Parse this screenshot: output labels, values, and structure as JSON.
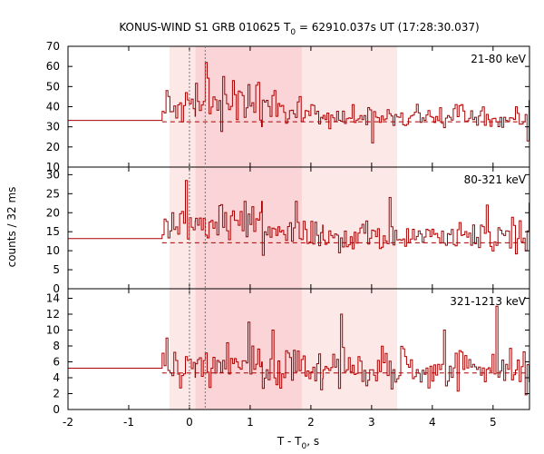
{
  "title": {
    "prefix": "KONUS-WIND S1 GRB 010625 T",
    "subscript": "0",
    "suffix": " = 62910.037s UT (17:28:30.037)"
  },
  "ylabel": "counts / 32 ms",
  "xlabel": {
    "prefix": "T - T",
    "subscript": "0",
    "suffix": ", s"
  },
  "colors": {
    "line": "#aa0000",
    "shade_light": "#fde8e8",
    "shade_dark": "#fad4d6",
    "marker": "#777777",
    "frame": "#000000"
  },
  "chart_data": {
    "type": "line",
    "subtype": "step light curve, 3 stacked panels sharing x axis",
    "xlim": [
      -2,
      5.6
    ],
    "xticks": [
      -2,
      -1,
      0,
      1,
      2,
      3,
      4,
      5
    ],
    "shaded_intervals": [
      {
        "from": -0.33,
        "to": 3.42,
        "shade": "light"
      },
      {
        "from": 0.1,
        "to": 1.85,
        "shade": "dark"
      }
    ],
    "markers": [
      0,
      0.26
    ],
    "bin_width": 0.032,
    "panels": [
      {
        "label": "21-80 keV",
        "ylim": [
          10,
          70
        ],
        "yticks": [
          10,
          20,
          30,
          40,
          50,
          60,
          70
        ],
        "pre_level": 33.2,
        "pre_end": -0.45,
        "background": 32.5,
        "segments": [
          {
            "from": -0.45,
            "to": 0.1,
            "mean": 39,
            "amp": 6,
            "seed": 11,
            "peaks": [
              [
                -0.38,
                48
              ],
              [
                -0.05,
                47
              ]
            ]
          },
          {
            "from": 0.1,
            "to": 1.2,
            "mean": 41,
            "amp": 10,
            "seed": 23,
            "peaks": [
              [
                0.26,
                62
              ],
              [
                0.7,
                53
              ],
              [
                0.55,
                55
              ],
              [
                0.95,
                51
              ]
            ]
          },
          {
            "from": 1.2,
            "to": 2.2,
            "mean": 37,
            "amp": 7,
            "seed": 37,
            "peaks": [
              [
                1.4,
                48
              ],
              [
                1.8,
                45
              ]
            ]
          },
          {
            "from": 2.2,
            "to": 5.6,
            "mean": 34.5,
            "amp": 5.5,
            "seed": 41,
            "peaks": [
              [
                3.0,
                22
              ],
              [
                5.55,
                23
              ],
              [
                5.6,
                43
              ]
            ]
          }
        ]
      },
      {
        "label": "80-321 keV",
        "ylim": [
          0,
          32
        ],
        "yticks": [
          0,
          5,
          10,
          15,
          20,
          25,
          30
        ],
        "pre_level": 13.2,
        "pre_end": -0.45,
        "background": 12.1,
        "segments": [
          {
            "from": -0.45,
            "to": 0.1,
            "mean": 17,
            "amp": 4,
            "seed": 53,
            "peaks": [
              [
                -0.3,
                20
              ],
              [
                -0.05,
                28.5
              ]
            ]
          },
          {
            "from": 0.1,
            "to": 1.2,
            "mean": 17.5,
            "amp": 4.5,
            "seed": 67,
            "peaks": [
              [
                0.9,
                23
              ],
              [
                1.2,
                23
              ]
            ]
          },
          {
            "from": 1.2,
            "to": 2.2,
            "mean": 15,
            "amp": 4,
            "seed": 71,
            "peaks": [
              [
                1.75,
                23
              ]
            ]
          },
          {
            "from": 2.2,
            "to": 5.6,
            "mean": 13.8,
            "amp": 3.6,
            "seed": 83,
            "peaks": [
              [
                3.3,
                24
              ],
              [
                4.9,
                22
              ],
              [
                5.58,
                22.5
              ]
            ]
          }
        ]
      },
      {
        "label": "321-1213 keV",
        "ylim": [
          0,
          15.2
        ],
        "yticks": [
          0,
          2,
          4,
          6,
          8,
          10,
          12,
          14
        ],
        "pre_level": 5.2,
        "pre_end": -0.45,
        "background": 4.6,
        "segments": [
          {
            "from": -0.45,
            "to": 0.1,
            "mean": 5.5,
            "amp": 2.4,
            "seed": 97,
            "peaks": [
              [
                -0.38,
                9
              ]
            ]
          },
          {
            "from": 0.1,
            "to": 1.2,
            "mean": 5.8,
            "amp": 2.8,
            "seed": 101,
            "peaks": [
              [
                0.95,
                11
              ],
              [
                1.35,
                10
              ]
            ]
          },
          {
            "from": 1.2,
            "to": 2.2,
            "mean": 5.0,
            "amp": 2.5,
            "seed": 113,
            "peaks": [
              [
                1.35,
                10
              ]
            ]
          },
          {
            "from": 2.2,
            "to": 5.6,
            "mean": 5.0,
            "amp": 2.4,
            "seed": 127,
            "peaks": [
              [
                2.5,
                12
              ],
              [
                4.2,
                10
              ],
              [
                5.05,
                13
              ]
            ]
          }
        ]
      }
    ]
  }
}
